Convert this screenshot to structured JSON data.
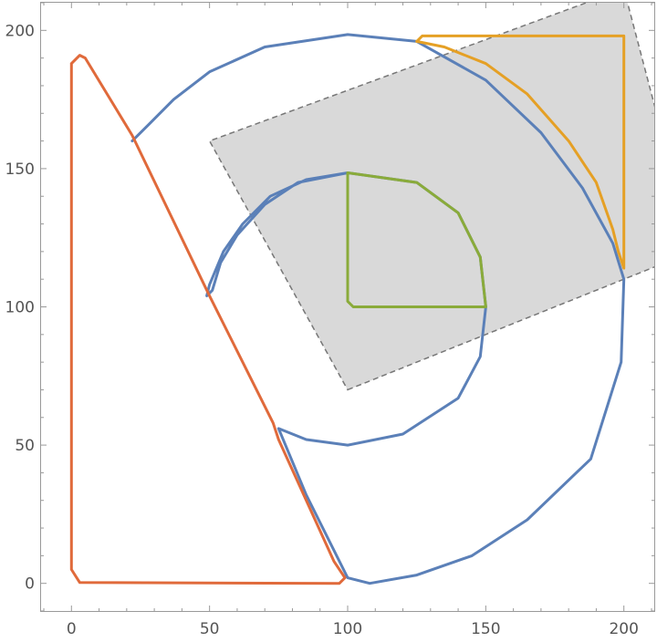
{
  "chart_data": {
    "type": "line",
    "title": "",
    "xlabel": "",
    "ylabel": "",
    "xlim": [
      -11,
      211
    ],
    "ylim": [
      -10,
      210
    ],
    "grid": false,
    "x_ticks": [
      "0",
      "50",
      "100",
      "150",
      "200"
    ],
    "y_ticks": [
      "0",
      "50",
      "100",
      "150",
      "200"
    ],
    "rectangle": {
      "corners": [
        [
          100,
          70
        ],
        [
          225,
          120
        ],
        [
          200,
          215
        ],
        [
          50,
          160
        ]
      ],
      "fill": "#d9d9d9",
      "stroke": "#777777",
      "dash": true
    },
    "series": [
      {
        "color": "#5b80b8",
        "points": [
          [
            22,
            160
          ],
          [
            28,
            166
          ],
          [
            37,
            175
          ],
          [
            50,
            185
          ],
          [
            70,
            194
          ],
          [
            100,
            198.5
          ],
          [
            125,
            196
          ],
          [
            150,
            182
          ],
          [
            170,
            163
          ],
          [
            185,
            143
          ],
          [
            196,
            123
          ],
          [
            200,
            110
          ],
          [
            199,
            80
          ],
          [
            188,
            45
          ],
          [
            165,
            23
          ],
          [
            145,
            10
          ],
          [
            125,
            3
          ],
          [
            108,
            0
          ],
          [
            100,
            2
          ],
          [
            85,
            32
          ],
          [
            75,
            56
          ],
          [
            85,
            52
          ],
          [
            100,
            50
          ],
          [
            120,
            54
          ],
          [
            140,
            67
          ],
          [
            148,
            82
          ],
          [
            150,
            100
          ],
          [
            148,
            118
          ],
          [
            140,
            134
          ],
          [
            125,
            145
          ],
          [
            100,
            148.5
          ],
          [
            82,
            145
          ],
          [
            70,
            137
          ],
          [
            60,
            126
          ],
          [
            54,
            116
          ],
          [
            51,
            106
          ],
          [
            49,
            104
          ],
          [
            50,
            108
          ],
          [
            55,
            120
          ],
          [
            62,
            130
          ],
          [
            72,
            140
          ],
          [
            85,
            146
          ],
          [
            100,
            148.5
          ]
        ]
      },
      {
        "color": "#e06a3b",
        "points": [
          [
            0,
            188
          ],
          [
            0,
            5
          ],
          [
            3,
            0.3
          ],
          [
            97,
            0
          ],
          [
            99,
            2
          ],
          [
            95,
            8
          ],
          [
            75,
            52
          ],
          [
            73,
            58
          ],
          [
            50,
            104
          ],
          [
            22,
            162
          ],
          [
            5,
            190
          ],
          [
            3,
            191
          ],
          [
            0,
            188
          ]
        ]
      },
      {
        "color": "#e5a025",
        "points": [
          [
            125,
            196
          ],
          [
            127,
            198
          ],
          [
            200,
            198
          ],
          [
            200,
            114
          ],
          [
            198,
            120
          ],
          [
            196,
            128
          ],
          [
            190,
            145
          ],
          [
            180,
            160
          ],
          [
            165,
            177
          ],
          [
            150,
            188
          ],
          [
            135,
            194
          ],
          [
            125,
            196
          ]
        ]
      },
      {
        "color": "#8aab3a",
        "points": [
          [
            100,
            148.5
          ],
          [
            100,
            102
          ],
          [
            102,
            100
          ],
          [
            150,
            100
          ],
          [
            148,
            118
          ],
          [
            140,
            134
          ],
          [
            125,
            145
          ],
          [
            100,
            148.5
          ]
        ]
      }
    ]
  }
}
